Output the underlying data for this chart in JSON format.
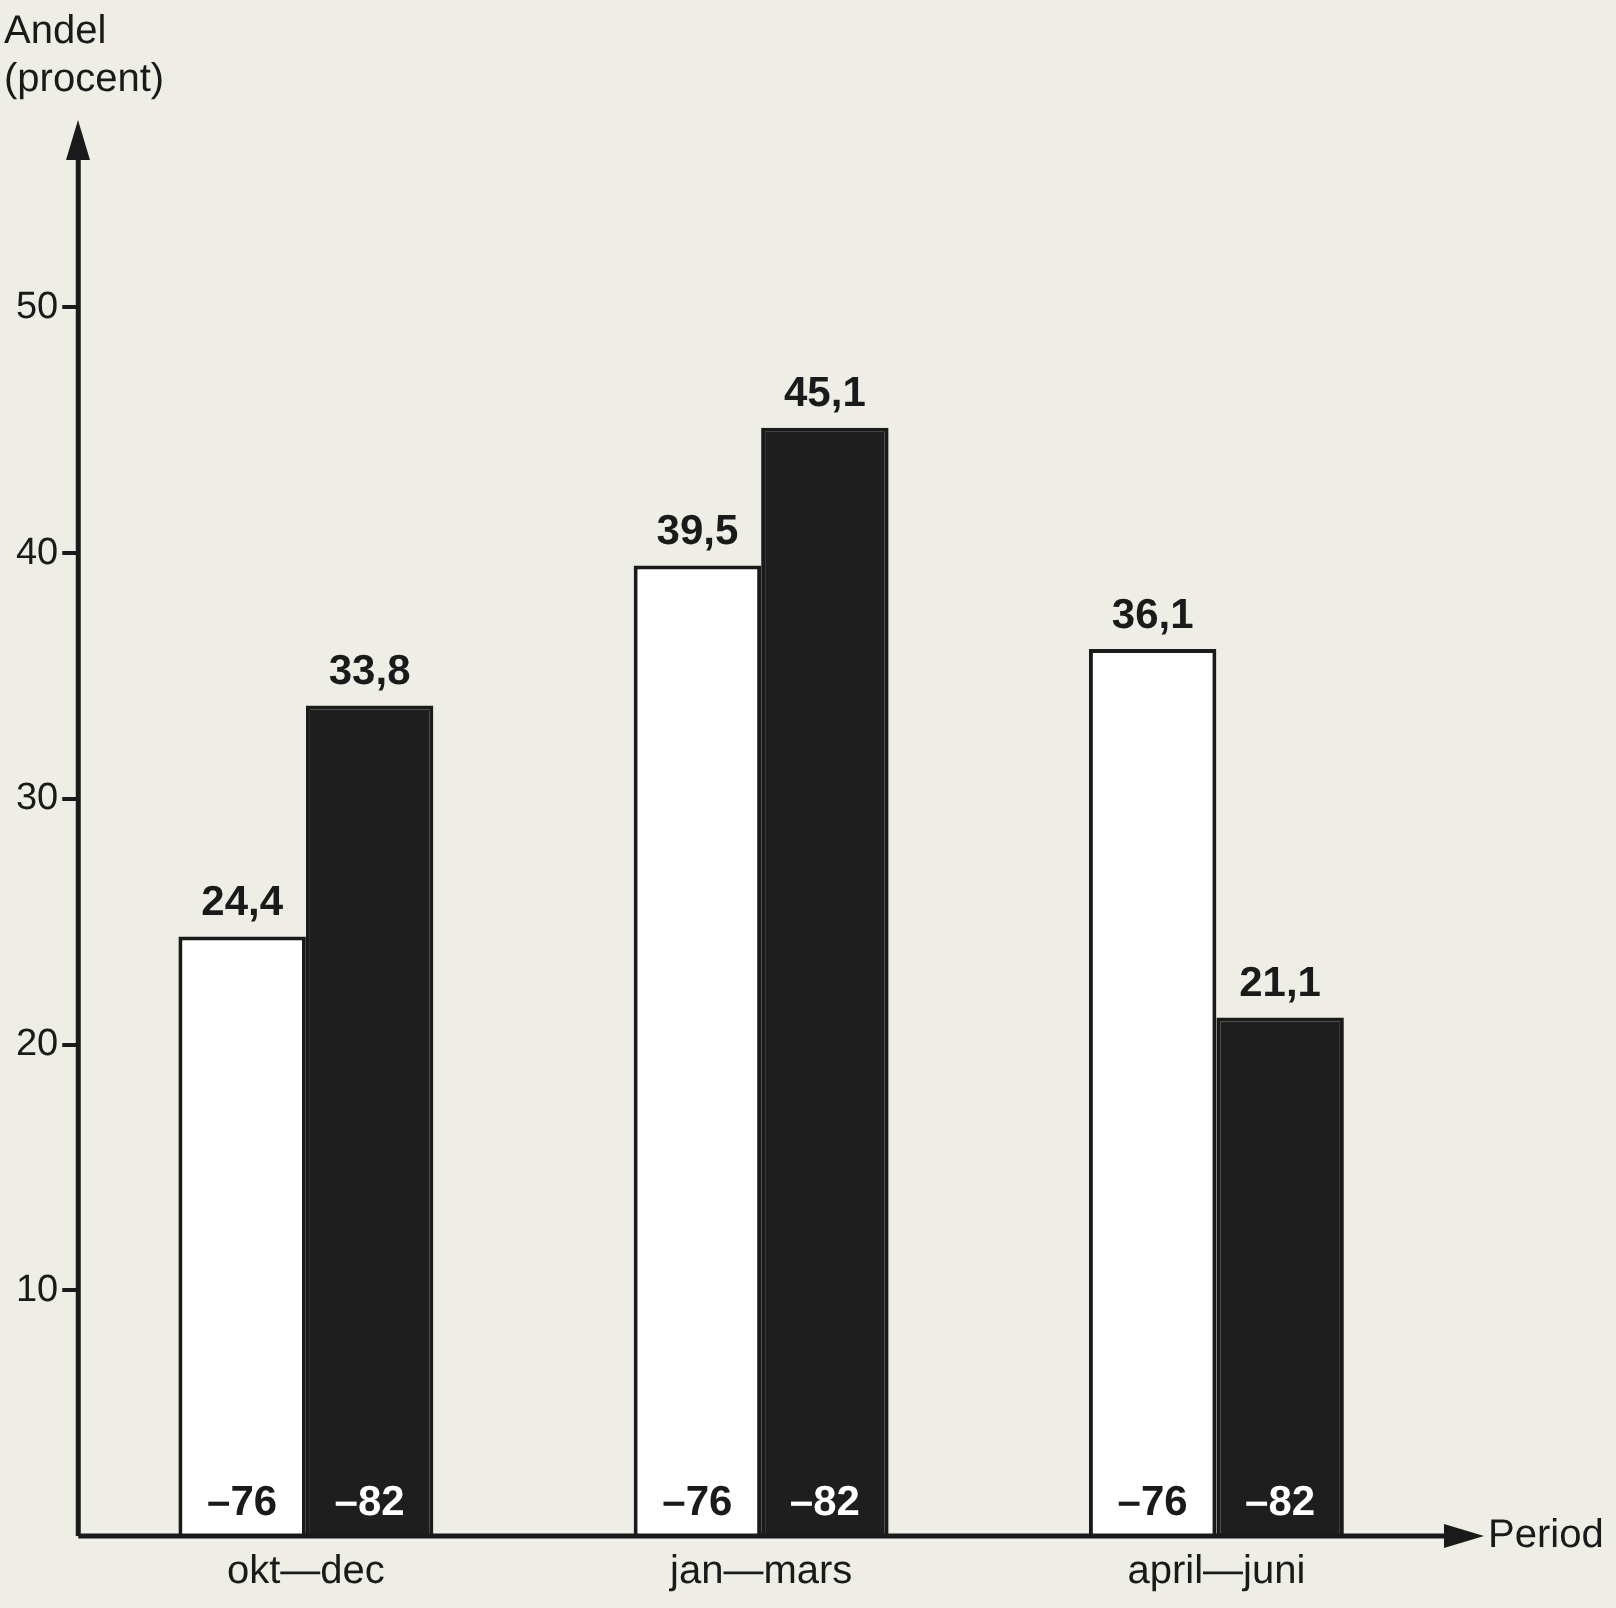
{
  "chart_data": {
    "type": "bar",
    "ylabel": "Andel (procent)",
    "xlabel": "Period",
    "categories": [
      "okt—dec",
      "jan—mars",
      "april—juni"
    ],
    "series": [
      {
        "name": "–76",
        "color": "#ffffff",
        "values": [
          24.4,
          39.5,
          36.1
        ],
        "value_labels": [
          "24,4",
          "39,5",
          "36,1"
        ]
      },
      {
        "name": "–82",
        "color": "#1e1e1e",
        "values": [
          33.8,
          45.1,
          21.1
        ],
        "value_labels": [
          "33,8",
          "45,1",
          "21,1"
        ]
      }
    ],
    "ylim": [
      0,
      56
    ],
    "yticks": [
      10,
      20,
      30,
      40,
      50
    ],
    "grid": false,
    "legend": false
  }
}
